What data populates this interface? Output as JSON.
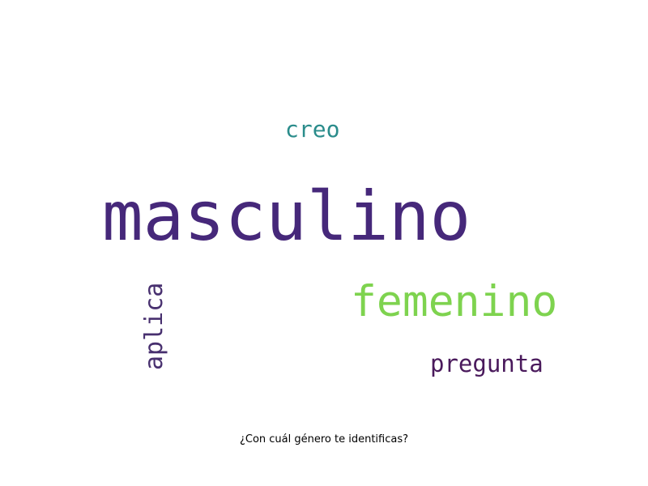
{
  "caption": "¿Con cuál género te identificas?",
  "words": {
    "masculino": {
      "text": "masculino",
      "color": "#46287a"
    },
    "femenino": {
      "text": "femenino",
      "color": "#7ed34f"
    },
    "creo": {
      "text": "creo",
      "color": "#2a8c8b"
    },
    "pregunta": {
      "text": "pregunta",
      "color": "#4a1a5c"
    },
    "aplica": {
      "text": "aplica",
      "color": "#48306f"
    }
  }
}
